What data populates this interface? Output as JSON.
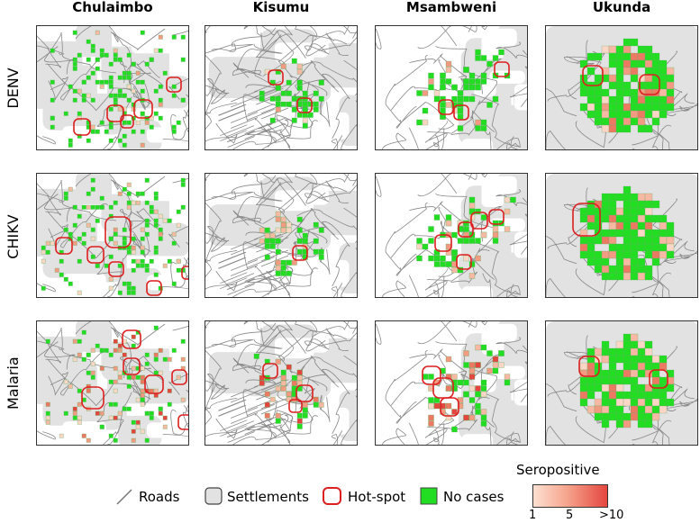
{
  "columns": [
    "Chulaimbo",
    "Kisumu",
    "Msambweni",
    "Ukunda"
  ],
  "rows": [
    "DENV",
    "CHIKV",
    "Malaria"
  ],
  "legend": {
    "roads": "Roads",
    "settlements": "Settlements",
    "hotspot": "Hot-spot",
    "nocases": "No cases",
    "colorbar_title": "Seropositive",
    "ticks": [
      "1",
      "5",
      ">10"
    ]
  },
  "colors": {
    "no_cases": "#22dd22",
    "hotspot": "#dd1f1f",
    "settlement": "#e2e2e2",
    "road": "#888888",
    "scale_low": "#fde0d2",
    "scale_high": "#e4463f"
  }
}
